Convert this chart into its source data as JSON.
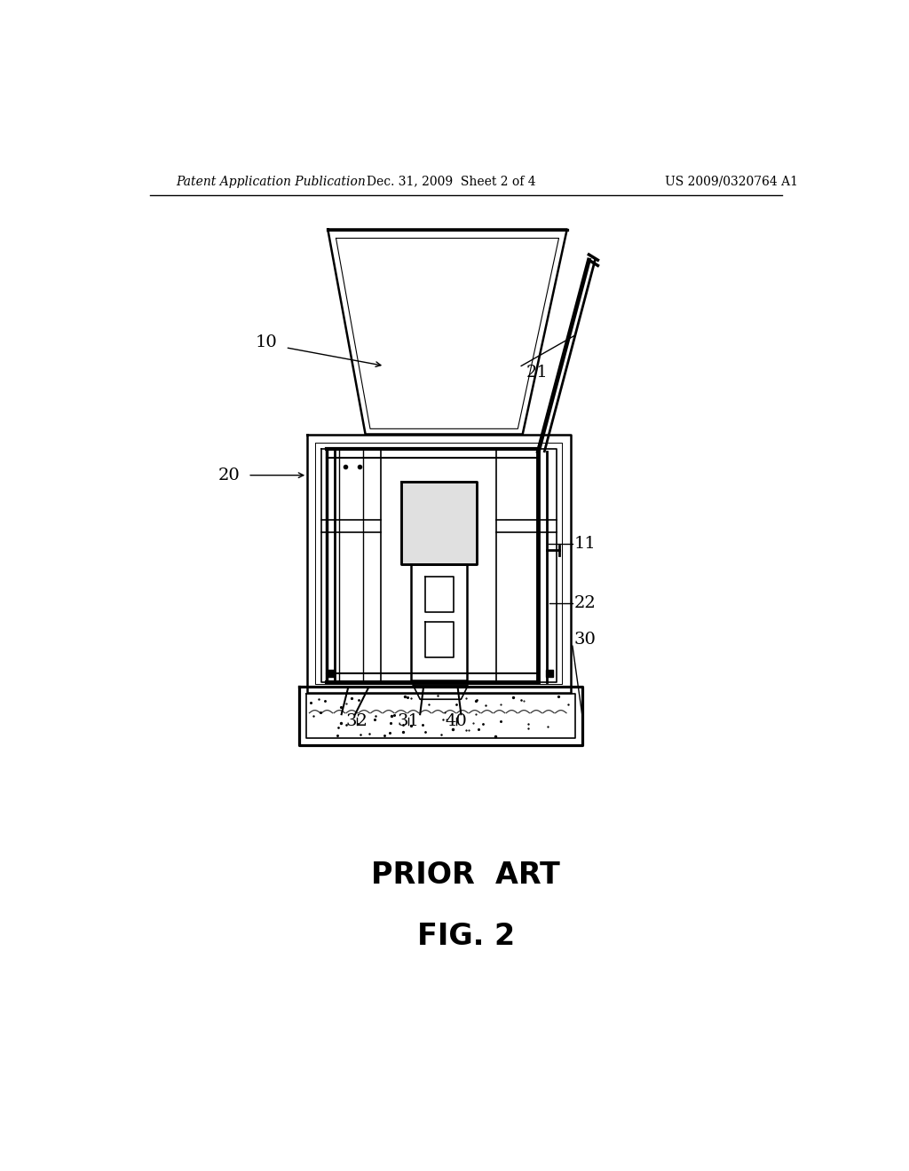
{
  "background_color": "#ffffff",
  "header_left": "Patent Application Publication",
  "header_center": "Dec. 31, 2009  Sheet 2 of 4",
  "header_right": "US 2009/0320764 A1",
  "footer_label1": "PRIOR  ART",
  "footer_label2": "FIG. 2"
}
